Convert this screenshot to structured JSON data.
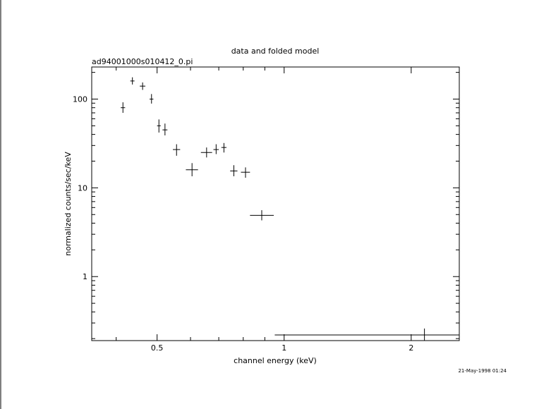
{
  "chart_data": {
    "type": "scatter",
    "title": "data and folded model",
    "subtitle": "ad94001000s010412_0.pi",
    "xlabel": "channel energy (keV)",
    "ylabel": "normalized counts/sec/keV",
    "x_scale": "log",
    "y_scale": "log",
    "xlim": [
      0.35,
      2.6
    ],
    "ylim": [
      0.19,
      230
    ],
    "x_ticks": [
      {
        "v": 0.5,
        "label": "0.5"
      },
      {
        "v": 1,
        "label": "1"
      },
      {
        "v": 2,
        "label": "2"
      }
    ],
    "y_ticks": [
      {
        "v": 1,
        "label": "1"
      },
      {
        "v": 10,
        "label": "10"
      },
      {
        "v": 100,
        "label": "100"
      }
    ],
    "grid": false,
    "series": [
      {
        "points": [
          {
            "x": 0.415,
            "xerr": [
              0.41,
              0.42
            ],
            "y": 80,
            "yerr": [
              70,
              92
            ]
          },
          {
            "x": 0.437,
            "xerr": [
              0.432,
              0.442
            ],
            "y": 160,
            "yerr": [
              146,
              176
            ]
          },
          {
            "x": 0.462,
            "xerr": [
              0.455,
              0.469
            ],
            "y": 140,
            "yerr": [
              127,
              154
            ]
          },
          {
            "x": 0.485,
            "xerr": [
              0.48,
              0.49
            ],
            "y": 100,
            "yerr": [
              89,
              114
            ]
          },
          {
            "x": 0.505,
            "xerr": [
              0.5,
              0.51
            ],
            "y": 50,
            "yerr": [
              42,
              59
            ]
          },
          {
            "x": 0.522,
            "xerr": [
              0.515,
              0.529
            ],
            "y": 45,
            "yerr": [
              39,
              53
            ]
          },
          {
            "x": 0.556,
            "xerr": [
              0.545,
              0.567
            ],
            "y": 27,
            "yerr": [
              23,
              31
            ]
          },
          {
            "x": 0.605,
            "xerr": [
              0.585,
              0.625
            ],
            "y": 16,
            "yerr": [
              13.5,
              19
            ]
          },
          {
            "x": 0.655,
            "xerr": [
              0.635,
              0.675
            ],
            "y": 25,
            "yerr": [
              22,
              28.5
            ]
          },
          {
            "x": 0.69,
            "xerr": [
              0.68,
              0.7
            ],
            "y": 27,
            "yerr": [
              24,
              31
            ]
          },
          {
            "x": 0.72,
            "xerr": [
              0.71,
              0.73
            ],
            "y": 28.5,
            "yerr": [
              25,
              32
            ]
          },
          {
            "x": 0.76,
            "xerr": [
              0.745,
              0.775
            ],
            "y": 15.5,
            "yerr": [
              13.5,
              18
            ]
          },
          {
            "x": 0.81,
            "xerr": [
              0.79,
              0.83
            ],
            "y": 15,
            "yerr": [
              13,
              17
            ]
          },
          {
            "x": 0.885,
            "xerr": [
              0.83,
              0.945
            ],
            "y": 4.9,
            "yerr": [
              4.3,
              5.6
            ]
          },
          {
            "x": 2.15,
            "xerr": [
              0.95,
              2.6
            ],
            "y": 0.22,
            "yerr": [
              0.19,
              0.26
            ]
          }
        ]
      }
    ]
  },
  "timestamp": "21-May-1998 01:24"
}
